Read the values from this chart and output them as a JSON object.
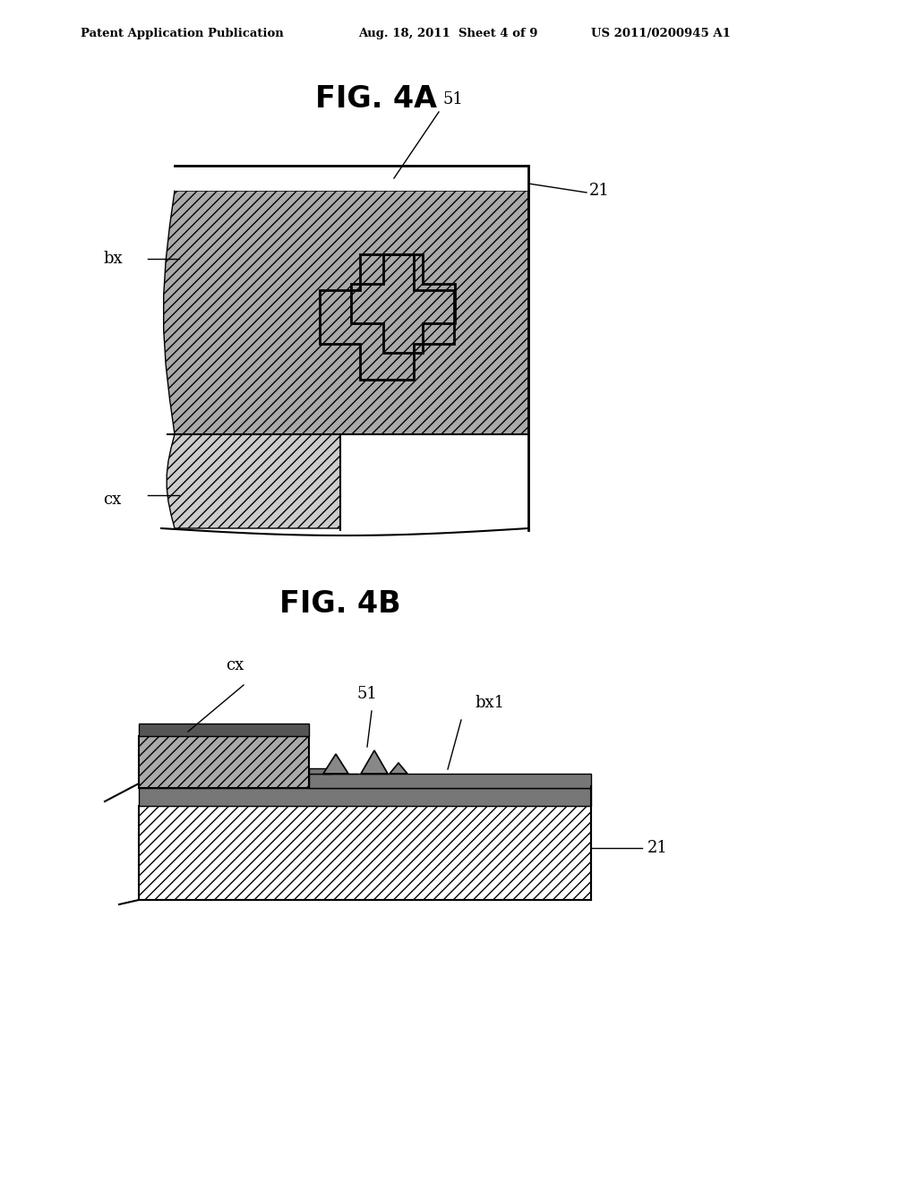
{
  "background_color": "#ffffff",
  "header_left": "Patent Application Publication",
  "header_mid": "Aug. 18, 2011  Sheet 4 of 9",
  "header_right": "US 2011/0200945 A1",
  "fig4a_title": "FIG. 4A",
  "fig4b_title": "FIG. 4B",
  "label_51_4a": "51",
  "label_21_4a": "21",
  "label_bx_4a": "bx",
  "label_cx_4a": "cx",
  "label_cx_4b": "cx",
  "label_51_4b": "51",
  "label_bx1_4b": "bx1",
  "label_21_4b": "21",
  "body_gray": "#aaaaaa",
  "cx_gray": "#bbbbbb",
  "dark_layer": "#777777",
  "substrate_white": "#ffffff",
  "hatch_diag": "///",
  "hatch_body": "///",
  "font_size_header": 9.5,
  "font_size_title": 24,
  "font_size_label": 13
}
